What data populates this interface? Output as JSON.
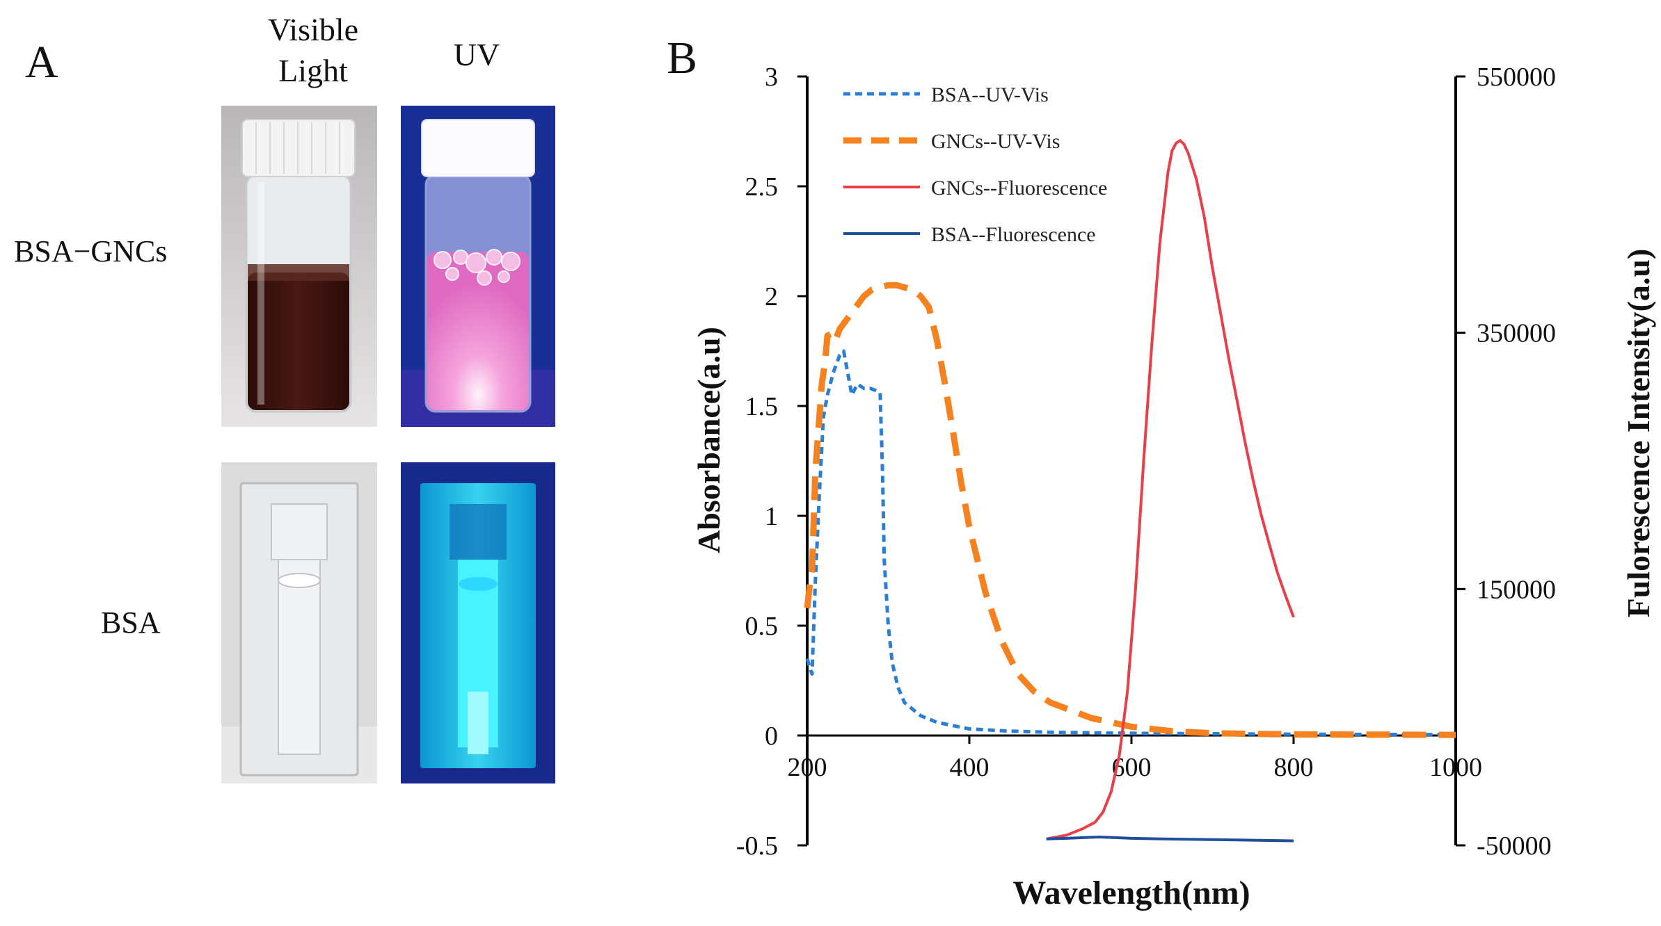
{
  "panel_a": {
    "letter": "A",
    "col_visible_line1": "Visible",
    "col_visible_line2": "Light",
    "col_uv": "UV",
    "row_top": "BSA−GNCs",
    "row_bottom": "BSA"
  },
  "panel_b": {
    "letter": "B"
  },
  "colors": {
    "bsa_uvvis": "#2a7fd4",
    "gncs_uvvis": "#f5821f",
    "gncs_fluor": "#e8404a",
    "bsa_fluor": "#1f4e9c",
    "uv_bg": "#1a2f95",
    "pink_glow": "#f27fc8",
    "cyan_glow": "#1ee0ff",
    "dark_liquid": "#3a1410"
  },
  "chart_data": {
    "type": "line",
    "xlabel": "Wavelength(nm)",
    "ylabel": "Absorbance(a.u)",
    "y2label": "Fulorescence Intensity(a.u)",
    "xlim": [
      200,
      1000
    ],
    "ylim": [
      -0.5,
      3
    ],
    "y2lim": [
      -50000,
      550000
    ],
    "x_ticks": [
      200,
      400,
      600,
      800,
      1000
    ],
    "x_tick_labels": [
      "200",
      "400",
      "600",
      "800",
      "1000"
    ],
    "y_ticks": [
      -0.5,
      0,
      0.5,
      1,
      1.5,
      2,
      2.5,
      3
    ],
    "y_tick_labels": [
      "-0.5",
      "0",
      "0.5",
      "1",
      "1.5",
      "2",
      "2.5",
      "3"
    ],
    "y2_ticks": [
      -50000,
      150000,
      350000,
      550000
    ],
    "y2_tick_labels": [
      "-50000",
      "150000",
      "350000",
      "550000"
    ],
    "legend_position": "top-left",
    "series": [
      {
        "name": "BSA--UV-Vis",
        "axis": "left",
        "style": "dotted",
        "color": "#2a7fd4",
        "x": [
          200,
          204,
          206,
          210,
          215,
          220,
          225,
          232,
          240,
          245,
          250,
          255,
          262,
          270,
          278,
          285,
          290,
          293,
          295,
          300,
          305,
          312,
          320,
          340,
          360,
          400,
          450,
          500,
          600,
          700,
          800,
          900,
          1000
        ],
        "y": [
          0.35,
          0.3,
          0.28,
          0.7,
          1.1,
          1.45,
          1.55,
          1.65,
          1.73,
          1.75,
          1.65,
          1.55,
          1.6,
          1.58,
          1.58,
          1.57,
          1.56,
          1.2,
          0.8,
          0.5,
          0.33,
          0.22,
          0.15,
          0.09,
          0.06,
          0.03,
          0.02,
          0.015,
          0.01,
          0.008,
          0.006,
          0.005,
          0.004
        ]
      },
      {
        "name": "GNCs--UV-Vis",
        "axis": "left",
        "style": "dashed",
        "color": "#f5821f",
        "x": [
          200,
          203,
          206,
          210,
          215,
          218,
          222,
          225,
          230,
          235,
          240,
          250,
          260,
          270,
          280,
          290,
          300,
          310,
          320,
          330,
          340,
          350,
          360,
          370,
          380,
          390,
          400,
          420,
          440,
          460,
          480,
          500,
          550,
          600,
          650,
          700,
          800,
          900,
          1000
        ],
        "y": [
          0.58,
          0.68,
          0.75,
          1.2,
          1.45,
          1.6,
          1.7,
          1.82,
          1.83,
          1.8,
          1.85,
          1.9,
          1.95,
          2.0,
          2.03,
          2.04,
          2.05,
          2.05,
          2.04,
          2.03,
          2.0,
          1.95,
          1.8,
          1.6,
          1.38,
          1.15,
          0.95,
          0.65,
          0.43,
          0.28,
          0.2,
          0.15,
          0.08,
          0.04,
          0.02,
          0.01,
          0.005,
          0.004,
          0.003
        ]
      },
      {
        "name": "GNCs--Fluorescence",
        "axis": "right",
        "style": "solid",
        "color": "#e8404a",
        "x": [
          495,
          520,
          540,
          555,
          565,
          575,
          585,
          595,
          605,
          615,
          625,
          635,
          645,
          650,
          655,
          660,
          665,
          670,
          680,
          690,
          700,
          710,
          720,
          730,
          740,
          750,
          760,
          770,
          780,
          790,
          800
        ],
        "y": [
          -45000,
          -42000,
          -37000,
          -32000,
          -24000,
          -8000,
          20000,
          70000,
          150000,
          250000,
          340000,
          420000,
          475000,
          492000,
          498000,
          500000,
          497000,
          490000,
          470000,
          440000,
          400000,
          365000,
          330000,
          298000,
          265000,
          235000,
          208000,
          185000,
          163000,
          145000,
          128000
        ]
      },
      {
        "name": "BSA--Fluorescence",
        "axis": "right",
        "style": "solid",
        "color": "#1f4e9c",
        "x": [
          495,
          520,
          540,
          560,
          580,
          600,
          640,
          700,
          750,
          800
        ],
        "y": [
          -45000,
          -44500,
          -44000,
          -43500,
          -44000,
          -44500,
          -45000,
          -45500,
          -46000,
          -46500
        ]
      }
    ]
  }
}
